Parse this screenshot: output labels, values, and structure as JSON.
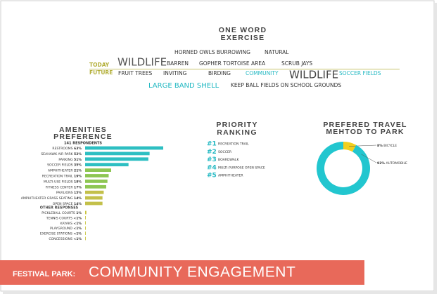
{
  "word_exercise": {
    "title": [
      "ONE WORD",
      "EXERCISE"
    ],
    "today_label": "TODAY",
    "future_label": "FUTURE",
    "today": [
      "HORNED OWLS BURROWING",
      "NATURAL",
      "WILDLIFE",
      "BARREN",
      "GOPHER TORTOISE AREA",
      "SCRUB JAYS"
    ],
    "future": [
      "FRUIT TREES",
      "INVITING",
      "BIRDING",
      "COMMUNITY",
      "WILDLIFE",
      "SOCCER FIELDS",
      "LARGE BAND SHELL",
      "KEEP BALL FIELDS ON SCHOOL GROUNDS"
    ]
  },
  "priority": {
    "title": [
      "PRIORITY",
      "RANKING"
    ],
    "items": [
      {
        "rank": "#1",
        "label": "RECREATION TRAIL"
      },
      {
        "rank": "#2",
        "label": "SOCCER"
      },
      {
        "rank": "#3",
        "label": "BOARDWALK"
      },
      {
        "rank": "#4",
        "label": "MULTI-PURPOSE OPEN SPACE"
      },
      {
        "rank": "#5",
        "label": "AMPHITHEATER"
      }
    ]
  },
  "chart_data": [
    {
      "type": "bar",
      "title": [
        "AMENITIES",
        "PREFERENCE"
      ],
      "subtitle": "141 RESPONDENTS",
      "categories": [
        "RESTROOMS",
        "SEAHAWK AIR PARK",
        "PARKING",
        "SOCCER FIELDS",
        "AMPHITHEATER",
        "RECREATION TRAIL",
        "MULTI-USE FIELDS",
        "FITNESS CENTER",
        "PAVILIONS",
        "AMPHITHEATER GRASS SEATING",
        "OPEN SPACE"
      ],
      "values": [
        63,
        52,
        51,
        35,
        21,
        19,
        18,
        17,
        15,
        14,
        14
      ],
      "value_labels": [
        "63%",
        "52%",
        "51%",
        "35%",
        "21%",
        "19%",
        "18%",
        "17%",
        "15%",
        "14%",
        "14%"
      ],
      "colors": [
        "#2dbfc2",
        "#2dbfc2",
        "#2dbfc2",
        "#2dbfc2",
        "#8ec653",
        "#8ec653",
        "#8ec653",
        "#8ec653",
        "#c3c04a",
        "#c3c04a",
        "#c3c04a"
      ]
    },
    {
      "type": "bar",
      "title": "OTHER RESPONSES",
      "categories": [
        "PICKLEBALL COURTS",
        "TENNIS COURTS",
        "KAYAKS",
        "PLAYGROUND",
        "EXERCISE STATIONS",
        "CONCESSIONS"
      ],
      "values": [
        1,
        0.5,
        0.5,
        0.5,
        0.5,
        0.5
      ],
      "value_labels": [
        "1%",
        "<1%",
        "<1%",
        "<1%",
        "<1%",
        "<1%"
      ],
      "color": "#c9c43f"
    },
    {
      "type": "donut",
      "title": [
        "PREFERED TRAVEL",
        "MEHTOD TO PARK"
      ],
      "categories": [
        "BICYCLE",
        "AUTOMOBILE"
      ],
      "values": [
        8,
        92
      ],
      "value_labels": [
        "8%",
        "92%"
      ],
      "colors": [
        "#f2cf1d",
        "#22c6cf"
      ]
    }
  ],
  "banner": {
    "label": "FESTIVAL PARK:",
    "title": "COMMUNITY ENGAGEMENT"
  }
}
